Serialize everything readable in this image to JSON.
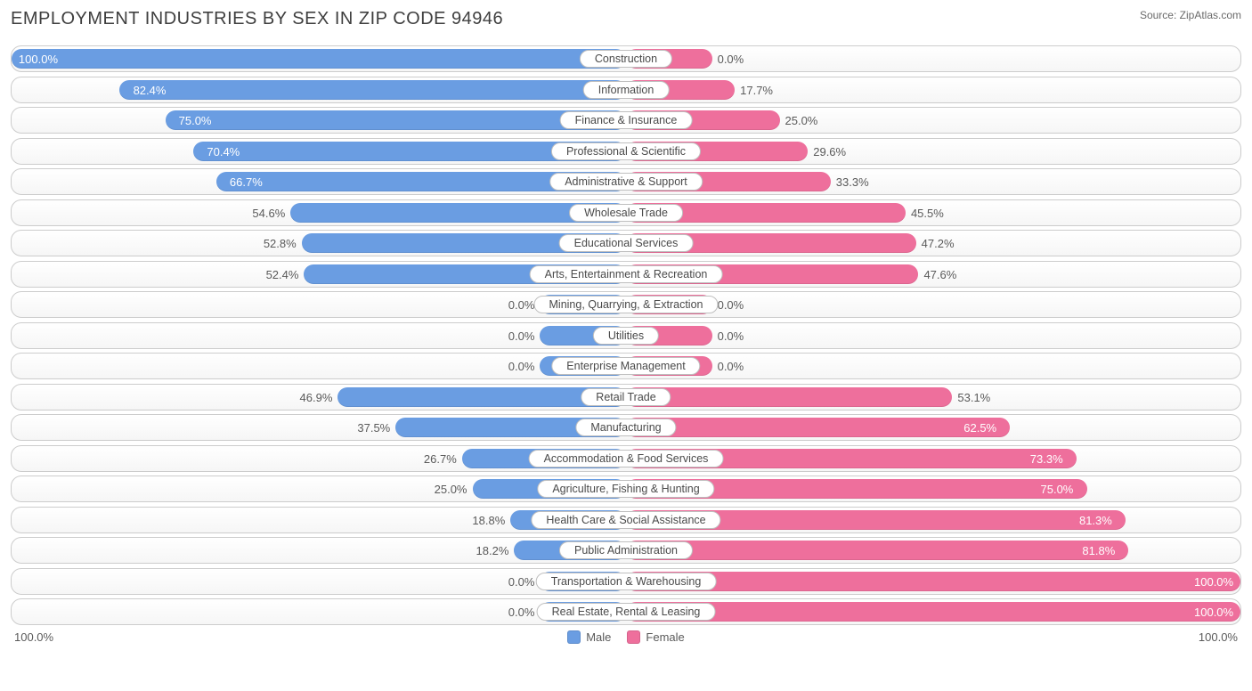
{
  "title": "EMPLOYMENT INDUSTRIES BY SEX IN ZIP CODE 94946",
  "source": "Source: ZipAtlas.com",
  "chart": {
    "type": "diverging-bar",
    "male_color": "#6a9de2",
    "female_color": "#ee6f9c",
    "row_bg_top": "#ffffff",
    "row_bg_bottom": "#f6f6f6",
    "border_color": "#cccccc",
    "label_bg": "#ffffff",
    "label_border": "#bfbfbf",
    "text_inside_color": "#ffffff",
    "text_outside_color": "#5a5a5a",
    "min_bar_pct": 14,
    "threshold_inside_pct": 55,
    "axis_left": "100.0%",
    "axis_right": "100.0%",
    "legend": {
      "male": "Male",
      "female": "Female"
    },
    "rows": [
      {
        "label": "Construction",
        "male": 100.0,
        "female": 0.0
      },
      {
        "label": "Information",
        "male": 82.4,
        "female": 17.7
      },
      {
        "label": "Finance & Insurance",
        "male": 75.0,
        "female": 25.0
      },
      {
        "label": "Professional & Scientific",
        "male": 70.4,
        "female": 29.6
      },
      {
        "label": "Administrative & Support",
        "male": 66.7,
        "female": 33.3
      },
      {
        "label": "Wholesale Trade",
        "male": 54.6,
        "female": 45.5
      },
      {
        "label": "Educational Services",
        "male": 52.8,
        "female": 47.2
      },
      {
        "label": "Arts, Entertainment & Recreation",
        "male": 52.4,
        "female": 47.6
      },
      {
        "label": "Mining, Quarrying, & Extraction",
        "male": 0.0,
        "female": 0.0
      },
      {
        "label": "Utilities",
        "male": 0.0,
        "female": 0.0
      },
      {
        "label": "Enterprise Management",
        "male": 0.0,
        "female": 0.0
      },
      {
        "label": "Retail Trade",
        "male": 46.9,
        "female": 53.1
      },
      {
        "label": "Manufacturing",
        "male": 37.5,
        "female": 62.5
      },
      {
        "label": "Accommodation & Food Services",
        "male": 26.7,
        "female": 73.3
      },
      {
        "label": "Agriculture, Fishing & Hunting",
        "male": 25.0,
        "female": 75.0
      },
      {
        "label": "Health Care & Social Assistance",
        "male": 18.8,
        "female": 81.3
      },
      {
        "label": "Public Administration",
        "male": 18.2,
        "female": 81.8
      },
      {
        "label": "Transportation & Warehousing",
        "male": 0.0,
        "female": 100.0
      },
      {
        "label": "Real Estate, Rental & Leasing",
        "male": 0.0,
        "female": 100.0
      }
    ]
  }
}
